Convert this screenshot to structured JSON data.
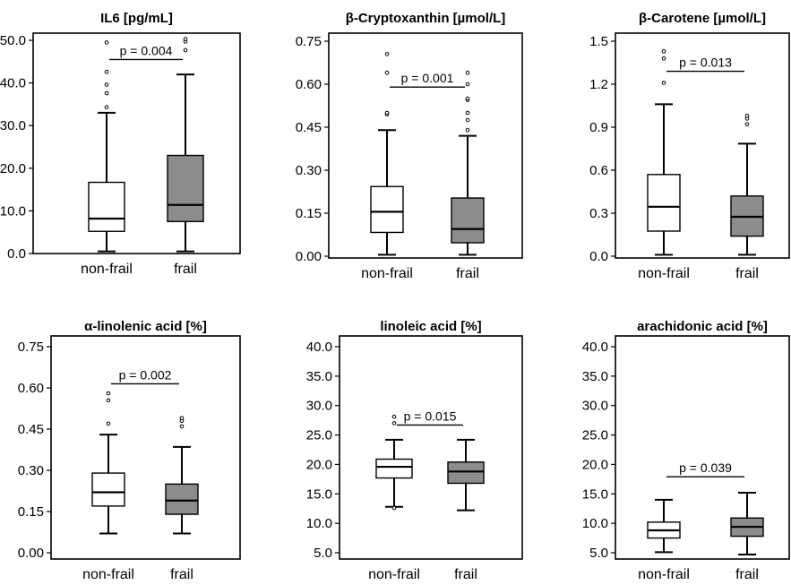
{
  "colors": {
    "nonfrail_fill": "#ffffff",
    "frail_fill": "#8c8c8c",
    "stroke": "#000000",
    "outlier_frail_light": "#9a9a9a"
  },
  "chart_data": [
    {
      "type": "box",
      "title": "IL6 [pg/mL]",
      "ylim": [
        0,
        50
      ],
      "yticks": [
        "0.0",
        "10.0",
        "20.0",
        "30.0",
        "40.0",
        "50.0"
      ],
      "categories": [
        "non-frail",
        "frail"
      ],
      "p_label": "p = 0.004",
      "p_y": 45.5,
      "series": [
        {
          "category": "non-frail",
          "min": 0.5,
          "q1": 5.2,
          "median": 8.2,
          "q3": 16.7,
          "max": 33.0,
          "outliers": [
            34.3,
            37.6,
            39.6,
            42.6,
            49.5
          ]
        },
        {
          "category": "frail",
          "min": 0.5,
          "q1": 7.5,
          "median": 11.4,
          "q3": 23.0,
          "max": 42.0,
          "outliers": [
            47.7,
            49.7,
            50.3
          ]
        }
      ]
    },
    {
      "type": "box",
      "title": "β-Cryptoxanthin [µmol/L]",
      "ylim": [
        0,
        0.75
      ],
      "yticks": [
        "0.00",
        "0.15",
        "0.30",
        "0.45",
        "0.60",
        "0.75"
      ],
      "categories": [
        "non-frail",
        "frail"
      ],
      "p_label": "p = 0.001",
      "p_y": 0.59,
      "series": [
        {
          "category": "non-frail",
          "min": 0.005,
          "q1": 0.083,
          "median": 0.155,
          "q3": 0.243,
          "max": 0.44,
          "outliers": [
            0.495,
            0.5,
            0.64,
            0.705
          ]
        },
        {
          "category": "frail",
          "min": 0.005,
          "q1": 0.047,
          "median": 0.095,
          "q3": 0.203,
          "max": 0.42,
          "outliers": [
            0.44,
            0.475,
            0.5,
            0.545,
            0.55,
            0.6,
            0.64
          ]
        }
      ]
    },
    {
      "type": "box",
      "title": "β-Carotene [µmol/L]",
      "ylim": [
        0,
        1.5
      ],
      "yticks": [
        "0.0",
        "0.3",
        "0.6",
        "0.9",
        "1.2",
        "1.5"
      ],
      "categories": [
        "non-frail",
        "frail"
      ],
      "p_label": "p = 0.013",
      "p_y": 1.29,
      "series": [
        {
          "category": "non-frail",
          "min": 0.01,
          "q1": 0.175,
          "median": 0.345,
          "q3": 0.57,
          "max": 1.06,
          "outliers": [
            1.21,
            1.38,
            1.43
          ]
        },
        {
          "category": "frail",
          "min": 0.01,
          "q1": 0.14,
          "median": 0.275,
          "q3": 0.42,
          "max": 0.785,
          "outliers": [
            0.92,
            0.96,
            0.98
          ]
        }
      ]
    },
    {
      "type": "box",
      "title": "α-linolenic acid [%]",
      "ylim": [
        0,
        0.75
      ],
      "yticks": [
        "0.00",
        "0.15",
        "0.30",
        "0.45",
        "0.60",
        "0.75"
      ],
      "categories": [
        "non-frail",
        "frail"
      ],
      "p_label": "p = 0.002",
      "p_y": 0.615,
      "series": [
        {
          "category": "non-frail",
          "min": 0.07,
          "q1": 0.17,
          "median": 0.22,
          "q3": 0.29,
          "max": 0.43,
          "outliers": [
            0.47,
            0.555,
            0.58
          ]
        },
        {
          "category": "frail",
          "min": 0.07,
          "q1": 0.14,
          "median": 0.19,
          "q3": 0.25,
          "max": 0.385,
          "outliers": [
            0.46,
            0.48,
            0.49
          ]
        }
      ]
    },
    {
      "type": "box",
      "title": "linoleic acid [%]",
      "ylim": [
        4,
        42
      ],
      "yticks": [
        "5.0",
        "10.0",
        "15.0",
        "20.0",
        "25.0",
        "30.0",
        "35.0",
        "40.0"
      ],
      "categories": [
        "non-frail",
        "frail"
      ],
      "p_label": "p = 0.015",
      "p_y": 26.7,
      "series": [
        {
          "category": "non-frail",
          "min": 12.8,
          "q1": 17.7,
          "median": 19.6,
          "q3": 20.9,
          "max": 24.2,
          "outliers": [
            12.6,
            27.0,
            28.1
          ]
        },
        {
          "category": "frail",
          "min": 12.2,
          "q1": 16.8,
          "median": 18.8,
          "q3": 20.4,
          "max": 24.2,
          "outliers": []
        }
      ]
    },
    {
      "type": "box",
      "title": "arachidonic acid [%]",
      "ylim": [
        4,
        42
      ],
      "yticks": [
        "5.0",
        "10.0",
        "15.0",
        "20.0",
        "25.0",
        "30.0",
        "35.0",
        "40.0"
      ],
      "categories": [
        "non-frail",
        "frail"
      ],
      "p_label": "p = 0.039",
      "p_y": 17.9,
      "series": [
        {
          "category": "non-frail",
          "min": 5.1,
          "q1": 7.5,
          "median": 8.8,
          "q3": 10.2,
          "max": 14.0,
          "outliers": []
        },
        {
          "category": "frail",
          "min": 4.7,
          "q1": 7.8,
          "median": 9.4,
          "q3": 10.9,
          "max": 15.2,
          "outliers": []
        }
      ]
    }
  ]
}
